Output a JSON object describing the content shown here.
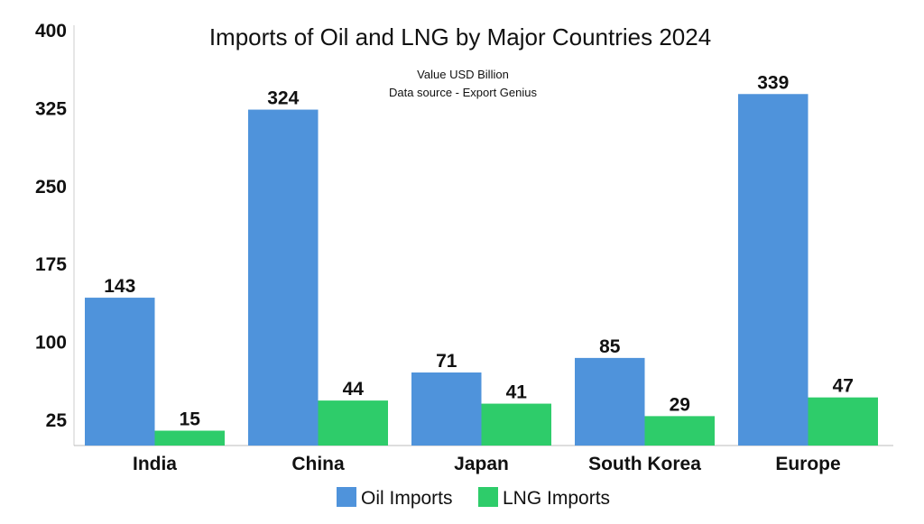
{
  "chart_data": {
    "type": "bar",
    "title": "Imports of Oil and LNG by Major Countries 2024",
    "subtitle_lines": [
      "Value USD Billion",
      "Data source - Export Genius"
    ],
    "categories": [
      "India",
      "China",
      "Japan",
      "South Korea",
      "Europe"
    ],
    "series": [
      {
        "name": "Oil Imports",
        "color": "#4f93db",
        "values": [
          143,
          324,
          71,
          85,
          339
        ]
      },
      {
        "name": "LNG Imports",
        "color": "#2ecc6a",
        "values": [
          15,
          44,
          41,
          29,
          47
        ]
      }
    ],
    "yticks": [
      "25",
      "100",
      "175",
      "250",
      "325",
      "400"
    ],
    "ylim": [
      0,
      400
    ],
    "xlabel": "",
    "ylabel": "",
    "grid": false,
    "legend_position": "bottom-center"
  }
}
